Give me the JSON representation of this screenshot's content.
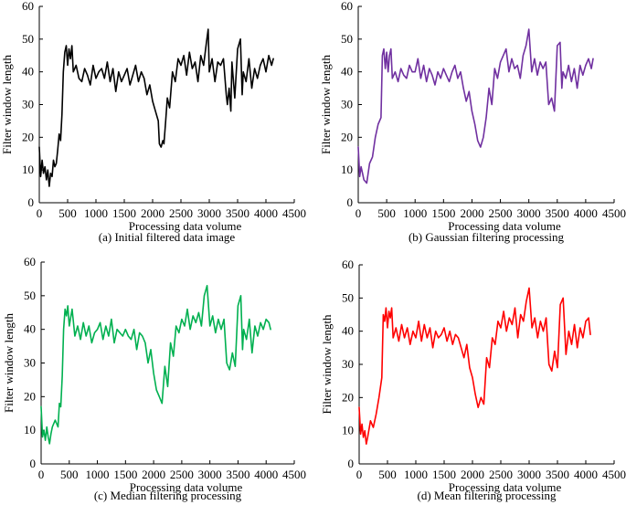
{
  "chart_data": [
    {
      "type": "line",
      "caption": "(a) Initial filtered data image",
      "xlabel": "Processing data volume",
      "ylabel": "Filter window length",
      "xlim": [
        0,
        4500
      ],
      "ylim": [
        0,
        60
      ],
      "xticks": [
        "0",
        "500",
        "1000",
        "1500",
        "2000",
        "2500",
        "3000",
        "3500",
        "4000",
        "4500"
      ],
      "yticks": [
        "0",
        "10",
        "20",
        "30",
        "40",
        "50",
        "60"
      ],
      "grid": false,
      "series": [
        {
          "name": "Initial filtered data",
          "color": "#000000",
          "x": [
            0,
            25,
            50,
            75,
            100,
            125,
            150,
            175,
            200,
            225,
            250,
            275,
            300,
            325,
            350,
            375,
            400,
            425,
            450,
            475,
            500,
            525,
            550,
            575,
            600,
            650,
            700,
            750,
            800,
            850,
            900,
            950,
            1000,
            1050,
            1100,
            1150,
            1200,
            1250,
            1300,
            1350,
            1400,
            1450,
            1500,
            1550,
            1600,
            1650,
            1700,
            1750,
            1800,
            1850,
            1900,
            1950,
            2000,
            2050,
            2100,
            2120,
            2150,
            2180,
            2200,
            2230,
            2260,
            2300,
            2350,
            2400,
            2450,
            2500,
            2550,
            2600,
            2650,
            2700,
            2750,
            2800,
            2850,
            2900,
            2950,
            2980,
            3000,
            3050,
            3100,
            3150,
            3200,
            3250,
            3300,
            3320,
            3350,
            3380,
            3400,
            3450,
            3500,
            3550,
            3580,
            3600,
            3650,
            3700,
            3750,
            3800,
            3850,
            3900,
            3950,
            4000,
            4050,
            4100,
            4130
          ],
          "y": [
            17,
            8,
            13,
            9,
            11,
            7,
            10,
            5,
            9,
            8,
            13,
            11,
            12,
            16,
            21,
            19,
            27,
            40,
            46,
            48,
            42,
            47,
            44,
            48,
            40,
            42,
            38,
            37,
            41,
            39,
            36,
            42,
            38,
            40,
            41,
            38,
            43,
            37,
            41,
            34,
            40,
            37,
            39,
            41,
            36,
            39,
            42,
            37,
            40,
            38,
            33,
            36,
            31,
            28,
            25,
            18,
            17,
            19,
            18,
            25,
            32,
            29,
            40,
            37,
            44,
            42,
            45,
            39,
            46,
            41,
            43,
            37,
            45,
            42,
            49,
            53,
            40,
            44,
            37,
            43,
            42,
            44,
            33,
            30,
            35,
            28,
            43,
            32,
            47,
            50,
            33,
            40,
            37,
            44,
            35,
            41,
            38,
            42,
            44,
            40,
            45,
            42,
            44
          ]
        }
      ]
    },
    {
      "type": "line",
      "caption": "(b) Gaussian filtering processing",
      "xlabel": "Processing data volume",
      "ylabel": "Filter window length",
      "xlim": [
        0,
        4500
      ],
      "ylim": [
        0,
        60
      ],
      "xticks": [
        "0",
        "500",
        "1000",
        "1500",
        "2000",
        "2500",
        "3000",
        "3500",
        "4000",
        "4500"
      ],
      "yticks": [
        "0",
        "10",
        "20",
        "30",
        "40",
        "50",
        "60"
      ],
      "grid": false,
      "series": [
        {
          "name": "Gaussian filtering",
          "color": "#7030A0",
          "x": [
            0,
            25,
            50,
            75,
            100,
            150,
            200,
            250,
            300,
            350,
            400,
            425,
            450,
            475,
            500,
            525,
            550,
            575,
            600,
            650,
            700,
            750,
            800,
            850,
            900,
            950,
            1000,
            1050,
            1100,
            1150,
            1200,
            1250,
            1300,
            1350,
            1400,
            1450,
            1500,
            1550,
            1600,
            1650,
            1700,
            1750,
            1800,
            1850,
            1900,
            1950,
            2000,
            2050,
            2100,
            2150,
            2200,
            2250,
            2300,
            2350,
            2400,
            2450,
            2500,
            2550,
            2600,
            2650,
            2700,
            2750,
            2800,
            2850,
            2900,
            2950,
            3000,
            3050,
            3100,
            3150,
            3200,
            3250,
            3300,
            3350,
            3400,
            3450,
            3500,
            3550,
            3580,
            3600,
            3650,
            3700,
            3750,
            3800,
            3850,
            3900,
            3950,
            4000,
            4050,
            4100,
            4130
          ],
          "y": [
            17,
            8,
            11,
            9,
            7,
            6,
            12,
            14,
            20,
            24,
            26,
            45,
            47,
            41,
            46,
            40,
            45,
            47,
            38,
            40,
            37,
            41,
            39,
            38,
            42,
            40,
            40,
            44,
            38,
            42,
            37,
            41,
            39,
            36,
            40,
            38,
            41,
            39,
            37,
            40,
            42,
            38,
            40,
            35,
            31,
            34,
            28,
            24,
            19,
            17,
            20,
            26,
            35,
            30,
            41,
            38,
            43,
            45,
            47,
            40,
            44,
            41,
            42,
            38,
            45,
            48,
            53,
            40,
            44,
            39,
            43,
            41,
            43,
            30,
            32,
            28,
            48,
            49,
            35,
            40,
            38,
            42,
            37,
            41,
            35,
            42,
            39,
            42,
            44,
            41,
            44
          ]
        }
      ]
    },
    {
      "type": "line",
      "caption": "(c) Median filtering processing",
      "xlabel": "Processing data volume",
      "ylabel": "Filter window length",
      "xlim": [
        0,
        4500
      ],
      "ylim": [
        0,
        60
      ],
      "xticks": [
        "0",
        "500",
        "1000",
        "1500",
        "2000",
        "2500",
        "3000",
        "3500",
        "4000",
        "4500"
      ],
      "yticks": [
        "0",
        "10",
        "20",
        "30",
        "40",
        "50",
        "60"
      ],
      "grid": false,
      "series": [
        {
          "name": "Median filtering",
          "color": "#00B050",
          "x": [
            0,
            25,
            50,
            75,
            100,
            125,
            150,
            175,
            200,
            250,
            300,
            325,
            350,
            375,
            400,
            425,
            450,
            475,
            500,
            550,
            600,
            650,
            700,
            750,
            800,
            850,
            900,
            950,
            1000,
            1050,
            1100,
            1150,
            1200,
            1250,
            1300,
            1350,
            1400,
            1450,
            1500,
            1550,
            1600,
            1650,
            1700,
            1750,
            1800,
            1850,
            1900,
            1950,
            2000,
            2050,
            2100,
            2150,
            2200,
            2250,
            2300,
            2350,
            2400,
            2450,
            2500,
            2550,
            2600,
            2650,
            2700,
            2750,
            2800,
            2850,
            2900,
            2950,
            3000,
            3050,
            3100,
            3150,
            3200,
            3250,
            3300,
            3350,
            3400,
            3450,
            3500,
            3550,
            3580,
            3600,
            3650,
            3700,
            3750,
            3800,
            3850,
            3900,
            3950,
            4000,
            4050,
            4080
          ],
          "y": [
            17,
            8,
            10,
            7,
            11,
            8,
            6,
            9,
            11,
            13,
            11,
            18,
            17,
            26,
            40,
            46,
            44,
            47,
            41,
            46,
            38,
            41,
            37,
            42,
            38,
            41,
            36,
            39,
            40,
            42,
            37,
            41,
            38,
            43,
            36,
            40,
            39,
            38,
            40,
            38,
            37,
            40,
            34,
            39,
            38,
            36,
            30,
            34,
            27,
            22,
            20,
            18,
            29,
            23,
            36,
            32,
            41,
            39,
            43,
            41,
            46,
            40,
            44,
            42,
            45,
            41,
            50,
            53,
            41,
            44,
            39,
            43,
            40,
            43,
            30,
            28,
            33,
            29,
            47,
            50,
            34,
            40,
            37,
            43,
            33,
            41,
            38,
            42,
            40,
            43,
            42,
            40
          ]
        }
      ]
    },
    {
      "type": "line",
      "caption": "(d) Mean filtering processing",
      "xlabel": "Processing data volume",
      "ylabel": "Filter window length",
      "xlim": [
        0,
        4500
      ],
      "ylim": [
        0,
        60
      ],
      "xticks": [
        "0",
        "500",
        "1000",
        "1500",
        "2000",
        "2500",
        "3000",
        "3500",
        "4000",
        "4500"
      ],
      "yticks": [
        "0",
        "10",
        "20",
        "30",
        "40",
        "50",
        "60"
      ],
      "grid": false,
      "series": [
        {
          "name": "Mean filtering",
          "color": "#FF0000",
          "x": [
            0,
            25,
            50,
            75,
            100,
            125,
            150,
            200,
            250,
            300,
            350,
            400,
            425,
            450,
            475,
            500,
            525,
            550,
            575,
            600,
            650,
            700,
            750,
            800,
            850,
            900,
            950,
            1000,
            1050,
            1100,
            1150,
            1200,
            1250,
            1300,
            1350,
            1400,
            1450,
            1500,
            1550,
            1600,
            1650,
            1700,
            1750,
            1800,
            1850,
            1900,
            1950,
            2000,
            2050,
            2100,
            2150,
            2200,
            2250,
            2300,
            2350,
            2400,
            2450,
            2500,
            2550,
            2600,
            2650,
            2700,
            2750,
            2800,
            2850,
            2900,
            2950,
            3000,
            3050,
            3100,
            3150,
            3200,
            3250,
            3300,
            3350,
            3400,
            3450,
            3500,
            3550,
            3600,
            3650,
            3700,
            3750,
            3800,
            3850,
            3900,
            3950,
            4000,
            4050,
            4080
          ],
          "y": [
            17,
            9,
            12,
            8,
            10,
            6,
            8,
            13,
            11,
            15,
            20,
            26,
            45,
            43,
            47,
            41,
            46,
            44,
            47,
            38,
            41,
            37,
            42,
            38,
            41,
            36,
            40,
            38,
            43,
            37,
            42,
            38,
            41,
            35,
            40,
            38,
            39,
            41,
            37,
            40,
            36,
            39,
            38,
            35,
            32,
            36,
            29,
            26,
            21,
            17,
            20,
            18,
            32,
            29,
            38,
            36,
            43,
            41,
            46,
            40,
            44,
            42,
            47,
            38,
            45,
            43,
            49,
            53,
            41,
            44,
            38,
            43,
            40,
            44,
            30,
            28,
            34,
            29,
            48,
            50,
            33,
            40,
            36,
            42,
            35,
            41,
            38,
            43,
            44,
            39
          ]
        }
      ]
    }
  ]
}
